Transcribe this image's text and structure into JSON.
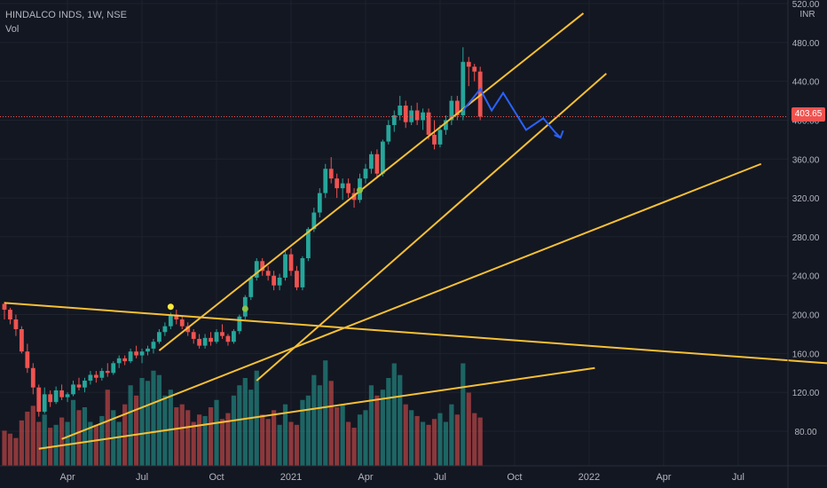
{
  "header": {
    "symbol": "HINDALCO INDS, 1W, NSE",
    "indicator": "Vol"
  },
  "colors": {
    "background": "#131722",
    "up": "#26a69a",
    "down": "#ef5350",
    "trendline": "#f7c035",
    "projection": "#2962ff",
    "grid": "#1e222d",
    "axis_text": "#b2b5be"
  },
  "chart_data": {
    "type": "candlestick",
    "symbol": "HINDALCO INDS",
    "interval": "1W",
    "exchange": "NSE",
    "currency": "INR",
    "last_price": "403.65",
    "y_ticks": [
      "520.00",
      "480.00",
      "440.00",
      "400.00",
      "360.00",
      "320.00",
      "280.00",
      "240.00",
      "200.00",
      "160.00",
      "120.00",
      "80.00"
    ],
    "y_tick_values": [
      520,
      480,
      440,
      400,
      360,
      320,
      280,
      240,
      200,
      160,
      120,
      80
    ],
    "x_ticks": [
      "Apr",
      "Jul",
      "Oct",
      "2021",
      "Apr",
      "Jul",
      "Oct",
      "2022",
      "Apr",
      "Jul"
    ],
    "x_tick_week_index": [
      11,
      24,
      37,
      50,
      63,
      76,
      89,
      102,
      115,
      128
    ],
    "ylim": [
      50,
      530
    ],
    "candles": [
      [
        211,
        213,
        195,
        205
      ],
      [
        205,
        207,
        190,
        195
      ],
      [
        195,
        200,
        178,
        185
      ],
      [
        185,
        188,
        160,
        162
      ],
      [
        162,
        170,
        140,
        145
      ],
      [
        145,
        150,
        118,
        125
      ],
      [
        125,
        128,
        95,
        100
      ],
      [
        100,
        125,
        98,
        118
      ],
      [
        118,
        122,
        105,
        110
      ],
      [
        110,
        126,
        108,
        122
      ],
      [
        122,
        128,
        112,
        115
      ],
      [
        115,
        120,
        110,
        118
      ],
      [
        118,
        132,
        116,
        128
      ],
      [
        128,
        135,
        122,
        125
      ],
      [
        125,
        135,
        120,
        132
      ],
      [
        132,
        142,
        128,
        138
      ],
      [
        138,
        142,
        130,
        135
      ],
      [
        135,
        145,
        132,
        142
      ],
      [
        142,
        150,
        136,
        140
      ],
      [
        140,
        152,
        138,
        150
      ],
      [
        150,
        158,
        145,
        155
      ],
      [
        155,
        158,
        148,
        152
      ],
      [
        152,
        165,
        150,
        162
      ],
      [
        162,
        168,
        155,
        158
      ],
      [
        158,
        165,
        150,
        162
      ],
      [
        162,
        168,
        158,
        165
      ],
      [
        165,
        175,
        160,
        172
      ],
      [
        172,
        185,
        170,
        182
      ],
      [
        182,
        192,
        178,
        188
      ],
      [
        188,
        202,
        185,
        200
      ],
      [
        200,
        205,
        190,
        195
      ],
      [
        195,
        198,
        185,
        188
      ],
      [
        188,
        192,
        178,
        182
      ],
      [
        182,
        185,
        170,
        175
      ],
      [
        175,
        180,
        165,
        168
      ],
      [
        168,
        180,
        165,
        176
      ],
      [
        176,
        182,
        168,
        172
      ],
      [
        172,
        185,
        170,
        182
      ],
      [
        182,
        190,
        175,
        178
      ],
      [
        178,
        180,
        168,
        172
      ],
      [
        172,
        185,
        170,
        183
      ],
      [
        183,
        200,
        180,
        198
      ],
      [
        198,
        220,
        195,
        218
      ],
      [
        218,
        240,
        215,
        238
      ],
      [
        238,
        258,
        235,
        255
      ],
      [
        255,
        258,
        240,
        245
      ],
      [
        245,
        250,
        235,
        240
      ],
      [
        240,
        245,
        225,
        230
      ],
      [
        230,
        242,
        225,
        238
      ],
      [
        238,
        265,
        235,
        262
      ],
      [
        262,
        268,
        240,
        245
      ],
      [
        245,
        250,
        225,
        228
      ],
      [
        228,
        260,
        225,
        258
      ],
      [
        258,
        290,
        255,
        288
      ],
      [
        288,
        310,
        285,
        305
      ],
      [
        305,
        330,
        300,
        325
      ],
      [
        325,
        355,
        320,
        350
      ],
      [
        350,
        362,
        335,
        340
      ],
      [
        340,
        345,
        320,
        330
      ],
      [
        330,
        340,
        318,
        335
      ],
      [
        335,
        340,
        320,
        325
      ],
      [
        325,
        330,
        310,
        318
      ],
      [
        318,
        345,
        315,
        340
      ],
      [
        340,
        355,
        335,
        350
      ],
      [
        350,
        368,
        345,
        365
      ],
      [
        365,
        370,
        340,
        345
      ],
      [
        345,
        380,
        342,
        378
      ],
      [
        378,
        400,
        375,
        395
      ],
      [
        395,
        410,
        388,
        405
      ],
      [
        405,
        425,
        400,
        415
      ],
      [
        415,
        420,
        392,
        398
      ],
      [
        398,
        415,
        395,
        410
      ],
      [
        410,
        418,
        395,
        400
      ],
      [
        400,
        412,
        390,
        408
      ],
      [
        408,
        412,
        380,
        385
      ],
      [
        385,
        400,
        370,
        375
      ],
      [
        375,
        395,
        372,
        390
      ],
      [
        390,
        405,
        385,
        400
      ],
      [
        400,
        425,
        395,
        420
      ],
      [
        420,
        425,
        400,
        405
      ],
      [
        405,
        475,
        400,
        460
      ],
      [
        460,
        465,
        435,
        455
      ],
      [
        455,
        458,
        440,
        450
      ],
      [
        450,
        455,
        400,
        403.65
      ]
    ],
    "volume_bars_relative": [
      0.24,
      0.22,
      0.19,
      0.31,
      0.37,
      0.41,
      0.3,
      0.35,
      0.26,
      0.28,
      0.33,
      0.3,
      0.45,
      0.38,
      0.4,
      0.3,
      0.28,
      0.34,
      0.52,
      0.38,
      0.3,
      0.42,
      0.55,
      0.48,
      0.6,
      0.58,
      0.65,
      0.62,
      0.48,
      0.52,
      0.4,
      0.42,
      0.38,
      0.3,
      0.35,
      0.34,
      0.4,
      0.45,
      0.32,
      0.36,
      0.48,
      0.55,
      0.6,
      0.52,
      0.65,
      0.35,
      0.32,
      0.38,
      0.28,
      0.42,
      0.3,
      0.28,
      0.45,
      0.48,
      0.62,
      0.55,
      0.72,
      0.58,
      0.4,
      0.42,
      0.3,
      0.26,
      0.35,
      0.38,
      0.55,
      0.48,
      0.52,
      0.6,
      0.7,
      0.62,
      0.42,
      0.38,
      0.34,
      0.3,
      0.28,
      0.32,
      0.36,
      0.3,
      0.42,
      0.35,
      0.7,
      0.5,
      0.36,
      0.33
    ],
    "volume_up_weeks": [
      7,
      9,
      12,
      14,
      15,
      17,
      19,
      20,
      22,
      24,
      25,
      26,
      27,
      28,
      29,
      35,
      37,
      40,
      41,
      42,
      43,
      44,
      48,
      49,
      52,
      53,
      54,
      55,
      56,
      59,
      62,
      63,
      64,
      66,
      67,
      68,
      69,
      71,
      73,
      76,
      77,
      78,
      80
    ],
    "trendlines": [
      {
        "from": [
          6,
          62
        ],
        "to": [
          103,
          145
        ]
      },
      {
        "from": [
          0,
          212
        ],
        "to": [
          155,
          145
        ]
      },
      {
        "from": [
          10,
          72
        ],
        "to": [
          132,
          355
        ]
      },
      {
        "from": [
          27,
          163
        ],
        "to": [
          101,
          510
        ]
      },
      {
        "from": [
          44,
          132
        ],
        "to": [
          105,
          448
        ]
      }
    ],
    "projection": [
      [
        80,
        410
      ],
      [
        83,
        432
      ],
      [
        85,
        410
      ],
      [
        87,
        428
      ],
      [
        91,
        390
      ],
      [
        94,
        402
      ],
      [
        96,
        388
      ],
      [
        97,
        382
      ]
    ],
    "markers": [
      {
        "week": 29,
        "price": 208,
        "color": "#ffeb3b"
      },
      {
        "week": 42,
        "price": 206,
        "color": "#8bc34a"
      },
      {
        "week": 62,
        "price": 328,
        "color": "#8bc34a"
      }
    ],
    "grid": true
  }
}
